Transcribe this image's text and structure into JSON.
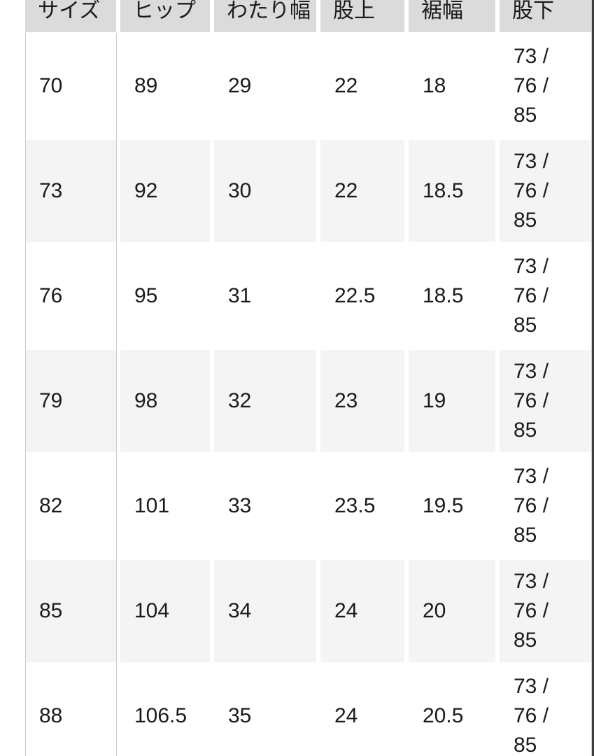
{
  "colors": {
    "header_bg": "#dbdbdb",
    "row_alt_bg": "#f4f4f4",
    "rule": "#cbcbcb",
    "text": "#1b1b1b",
    "screen_edge": "#3f3f3f"
  },
  "table": {
    "headers": [
      "サイズ",
      "ヒップ",
      "わたり幅",
      "股上",
      "裾幅",
      "股下"
    ],
    "rows": [
      [
        "70",
        "89",
        "29",
        "22",
        "18",
        "73 /\n76 /\n85"
      ],
      [
        "73",
        "92",
        "30",
        "22",
        "18.5",
        "73 /\n76 /\n85"
      ],
      [
        "76",
        "95",
        "31",
        "22.5",
        "18.5",
        "73 /\n76 /\n85"
      ],
      [
        "79",
        "98",
        "32",
        "23",
        "19",
        "73 /\n76 /\n85"
      ],
      [
        "82",
        "101",
        "33",
        "23.5",
        "19.5",
        "73 /\n76 /\n85"
      ],
      [
        "85",
        "104",
        "34",
        "24",
        "20",
        "73 /\n76 /\n85"
      ],
      [
        "88",
        "106.5",
        "35",
        "24",
        "20.5",
        "73 /\n76 /\n85"
      ]
    ]
  }
}
